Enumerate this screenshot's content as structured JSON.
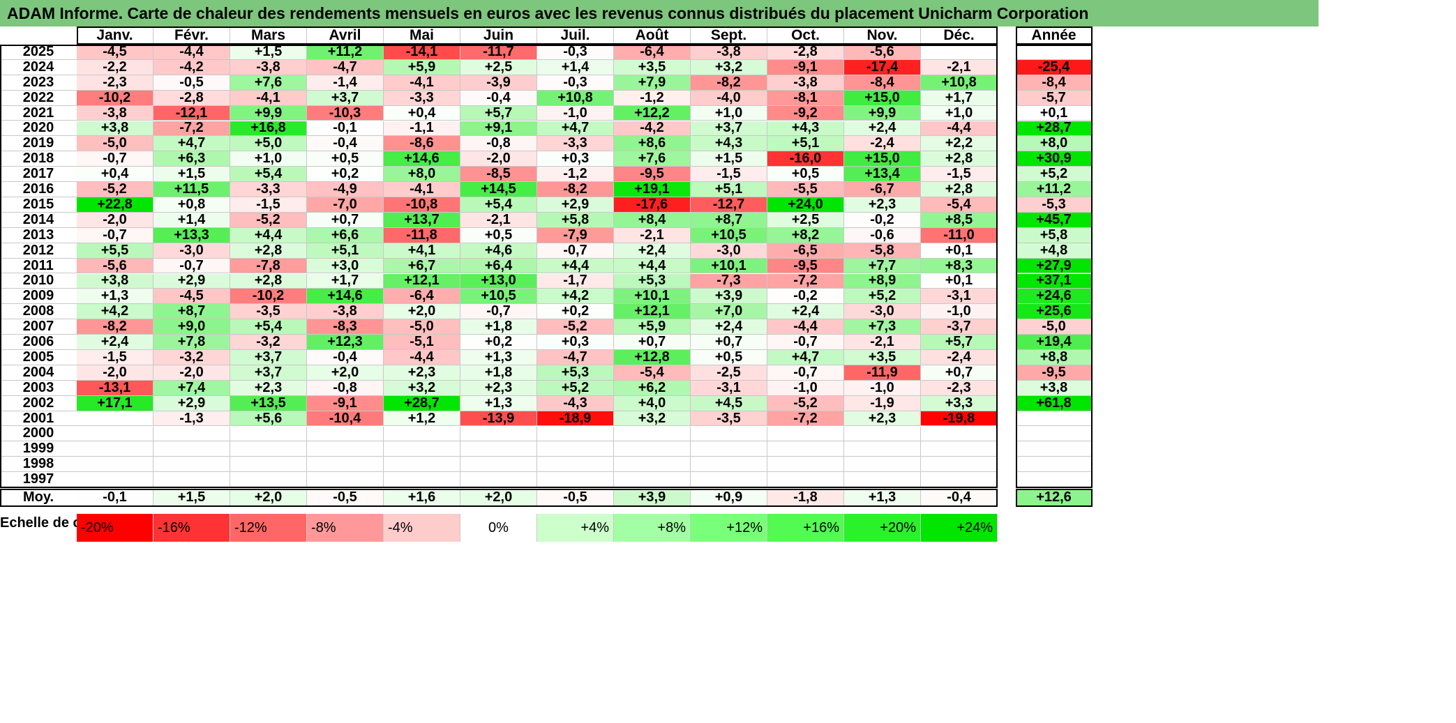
{
  "chart_data": {
    "type": "heatmap",
    "title": "ADAM Informe. Carte de chaleur des rendements mensuels en euros avec les revenus connus distribués du placement Unicharm Corporation",
    "months": [
      "Janv.",
      "Févr.",
      "Mars",
      "Avril",
      "Mai",
      "Juin",
      "Juil.",
      "Août",
      "Sept.",
      "Oct.",
      "Nov.",
      "Déc."
    ],
    "year_header": "Année",
    "rows": [
      {
        "year": "2025",
        "values": [
          "-4,5",
          "-4,4",
          "+1,5",
          "+11,2",
          "-14,1",
          "-11,7",
          "-0,3",
          "-6,4",
          "-3,8",
          "-2,8",
          "-5,6",
          ""
        ],
        "annual": ""
      },
      {
        "year": "2024",
        "values": [
          "-2,2",
          "-4,2",
          "-3,8",
          "-4,7",
          "+5,9",
          "+2,5",
          "+1,4",
          "+3,5",
          "+3,2",
          "-9,1",
          "-17,4",
          "-2,1"
        ],
        "annual": "-25,4"
      },
      {
        "year": "2023",
        "values": [
          "-2,3",
          "-0,5",
          "+7,6",
          "-1,4",
          "-4,1",
          "-3,9",
          "-0,3",
          "+7,9",
          "-8,2",
          "-3,8",
          "-8,4",
          "+10,8"
        ],
        "annual": "-8,4"
      },
      {
        "year": "2022",
        "values": [
          "-10,2",
          "-2,8",
          "-4,1",
          "+3,7",
          "-3,3",
          "-0,4",
          "+10,8",
          "-1,2",
          "-4,0",
          "-8,1",
          "+15,0",
          "+1,7"
        ],
        "annual": "-5,7"
      },
      {
        "year": "2021",
        "values": [
          "-3,8",
          "-12,1",
          "+9,9",
          "-10,3",
          "+0,4",
          "+5,7",
          "-1,0",
          "+12,2",
          "+1,0",
          "-9,2",
          "+9,9",
          "+1,0"
        ],
        "annual": "+0,1"
      },
      {
        "year": "2020",
        "values": [
          "+3,8",
          "-7,2",
          "+16,8",
          "-0,1",
          "-1,1",
          "+9,1",
          "+4,7",
          "-4,2",
          "+3,7",
          "+4,3",
          "+2,4",
          "-4,4"
        ],
        "annual": "+28,7"
      },
      {
        "year": "2019",
        "values": [
          "-5,0",
          "+4,7",
          "+5,0",
          "-0,4",
          "-8,6",
          "-0,8",
          "-3,3",
          "+8,6",
          "+4,3",
          "+5,1",
          "-2,4",
          "+2,2"
        ],
        "annual": "+8,0"
      },
      {
        "year": "2018",
        "values": [
          "-0,7",
          "+6,3",
          "+1,0",
          "+0,5",
          "+14,6",
          "-2,0",
          "+0,3",
          "+7,6",
          "+1,5",
          "-16,0",
          "+15,0",
          "+2,8"
        ],
        "annual": "+30,9"
      },
      {
        "year": "2017",
        "values": [
          "+0,4",
          "+1,5",
          "+5,4",
          "+0,2",
          "+8,0",
          "-8,5",
          "-1,2",
          "-9,5",
          "-1,5",
          "+0,5",
          "+13,4",
          "-1,5"
        ],
        "annual": "+5,2"
      },
      {
        "year": "2016",
        "values": [
          "-5,2",
          "+11,5",
          "-3,3",
          "-4,9",
          "-4,1",
          "+14,5",
          "-8,2",
          "+19,1",
          "+5,1",
          "-5,5",
          "-6,7",
          "+2,8"
        ],
        "annual": "+11,2"
      },
      {
        "year": "2015",
        "values": [
          "+22,8",
          "+0,8",
          "-1,5",
          "-7,0",
          "-10,8",
          "+5,4",
          "+2,9",
          "-17,6",
          "-12,7",
          "+24,0",
          "+2,3",
          "-5,4"
        ],
        "annual": "-5,3"
      },
      {
        "year": "2014",
        "values": [
          "-2,0",
          "+1,4",
          "-5,2",
          "+0,7",
          "+13,7",
          "-2,1",
          "+5,8",
          "+8,4",
          "+8,7",
          "+2,5",
          "-0,2",
          "+8,5"
        ],
        "annual": "+45,7"
      },
      {
        "year": "2013",
        "values": [
          "-0,7",
          "+13,3",
          "+4,4",
          "+6,6",
          "-11,8",
          "+0,5",
          "-7,9",
          "-2,1",
          "+10,5",
          "+8,2",
          "-0,6",
          "-11,0"
        ],
        "annual": "+5,8"
      },
      {
        "year": "2012",
        "values": [
          "+5,5",
          "-3,0",
          "+2,8",
          "+5,1",
          "+4,1",
          "+4,6",
          "-0,7",
          "+2,4",
          "-3,0",
          "-6,5",
          "-5,8",
          "+0,1"
        ],
        "annual": "+4,8"
      },
      {
        "year": "2011",
        "values": [
          "-5,6",
          "-0,7",
          "-7,8",
          "+3,0",
          "+6,7",
          "+6,4",
          "+4,4",
          "+4,4",
          "+10,1",
          "-9,5",
          "+7,7",
          "+8,3"
        ],
        "annual": "+27,9"
      },
      {
        "year": "2010",
        "values": [
          "+3,8",
          "+2,9",
          "+2,8",
          "+1,7",
          "+12,1",
          "+13,0",
          "-1,7",
          "+5,3",
          "-7,3",
          "-7,2",
          "+8,9",
          "+0,1"
        ],
        "annual": "+37,1"
      },
      {
        "year": "2009",
        "values": [
          "+1,3",
          "-4,5",
          "-10,2",
          "+14,6",
          "-6,4",
          "+10,5",
          "+4,2",
          "+10,1",
          "+3,9",
          "-0,2",
          "+5,2",
          "-3,1"
        ],
        "annual": "+24,6"
      },
      {
        "year": "2008",
        "values": [
          "+4,2",
          "+8,7",
          "-3,5",
          "-3,8",
          "+2,0",
          "-0,7",
          "+0,2",
          "+12,1",
          "+7,0",
          "+2,4",
          "-3,0",
          "-1,0"
        ],
        "annual": "+25,6"
      },
      {
        "year": "2007",
        "values": [
          "-8,2",
          "+9,0",
          "+5,4",
          "-8,3",
          "-5,0",
          "+1,8",
          "-5,2",
          "+5,9",
          "+2,4",
          "-4,4",
          "+7,3",
          "-3,7"
        ],
        "annual": "-5,0"
      },
      {
        "year": "2006",
        "values": [
          "+2,4",
          "+7,8",
          "-3,2",
          "+12,3",
          "-5,1",
          "+0,2",
          "+0,3",
          "+0,7",
          "+0,7",
          "-0,7",
          "-2,1",
          "+5,7"
        ],
        "annual": "+19,4"
      },
      {
        "year": "2005",
        "values": [
          "-1,5",
          "-3,2",
          "+3,7",
          "-0,4",
          "-4,4",
          "+1,3",
          "-4,7",
          "+12,8",
          "+0,5",
          "+4,7",
          "+3,5",
          "-2,4"
        ],
        "annual": "+8,8"
      },
      {
        "year": "2004",
        "values": [
          "-2,0",
          "-2,0",
          "+3,7",
          "+2,0",
          "+2,3",
          "+1,8",
          "+5,3",
          "-5,4",
          "-2,5",
          "-0,7",
          "-11,9",
          "+0,7"
        ],
        "annual": "-9,5"
      },
      {
        "year": "2003",
        "values": [
          "-13,1",
          "+7,4",
          "+2,3",
          "-0,8",
          "+3,2",
          "+2,3",
          "+5,2",
          "+6,2",
          "-3,1",
          "-1,0",
          "-1,0",
          "-2,3"
        ],
        "annual": "+3,8"
      },
      {
        "year": "2002",
        "values": [
          "+17,1",
          "+2,9",
          "+13,5",
          "-9,1",
          "+28,7",
          "+1,3",
          "-4,3",
          "+4,0",
          "+4,5",
          "-5,2",
          "-1,9",
          "+3,3"
        ],
        "annual": "+61,8"
      },
      {
        "year": "2001",
        "values": [
          "",
          "-1,3",
          "+5,6",
          "-10,4",
          "+1,2",
          "-13,9",
          "-18,9",
          "+3,2",
          "-3,5",
          "-7,2",
          "+2,3",
          "-19,8"
        ],
        "annual": ""
      },
      {
        "year": "2000",
        "values": [
          "",
          "",
          "",
          "",
          "",
          "",
          "",
          "",
          "",
          "",
          "",
          ""
        ],
        "annual": ""
      },
      {
        "year": "1999",
        "values": [
          "",
          "",
          "",
          "",
          "",
          "",
          "",
          "",
          "",
          "",
          "",
          ""
        ],
        "annual": ""
      },
      {
        "year": "1998",
        "values": [
          "",
          "",
          "",
          "",
          "",
          "",
          "",
          "",
          "",
          "",
          "",
          ""
        ],
        "annual": ""
      },
      {
        "year": "1997",
        "values": [
          "",
          "",
          "",
          "",
          "",
          "",
          "",
          "",
          "",
          "",
          "",
          ""
        ],
        "annual": ""
      }
    ],
    "average": {
      "label": "Moy.",
      "values": [
        "-0,1",
        "+1,5",
        "+2,0",
        "-0,5",
        "+1,6",
        "+2,0",
        "-0,5",
        "+3,9",
        "+0,9",
        "-1,8",
        "+1,3",
        "-0,4"
      ],
      "annual": "+12,6"
    },
    "legend": {
      "label": "Echelle de couleur",
      "steps": [
        {
          "text": "-20%",
          "value": -20,
          "color": "#ff0000",
          "align": "left"
        },
        {
          "text": "-16%",
          "value": -16,
          "color": "#ff3333",
          "align": "left"
        },
        {
          "text": "-12%",
          "value": -12,
          "color": "#ff6666",
          "align": "left"
        },
        {
          "text": "-8%",
          "value": -8,
          "color": "#ff9999",
          "align": "left"
        },
        {
          "text": "-4%",
          "value": -4,
          "color": "#ffcccc",
          "align": "left"
        },
        {
          "text": "0%",
          "value": 0,
          "color": "#ffffff",
          "align": "center"
        },
        {
          "text": "+4%",
          "value": 4,
          "color": "#ccffcc",
          "align": "right"
        },
        {
          "text": "+8%",
          "value": 8,
          "color": "#a3ffa3",
          "align": "right"
        },
        {
          "text": "+12%",
          "value": 12,
          "color": "#7aff7a",
          "align": "right"
        },
        {
          "text": "+16%",
          "value": 16,
          "color": "#52fa52",
          "align": "right"
        },
        {
          "text": "+20%",
          "value": 20,
          "color": "#2af22a",
          "align": "right"
        },
        {
          "text": "+24%",
          "value": 24,
          "color": "#00e600",
          "align": "right"
        }
      ]
    },
    "colors": {
      "title_bar": "#7dc67d",
      "negative_max": "#ff0000",
      "positive_max": "#00e600",
      "neutral": "#ffffff"
    }
  }
}
